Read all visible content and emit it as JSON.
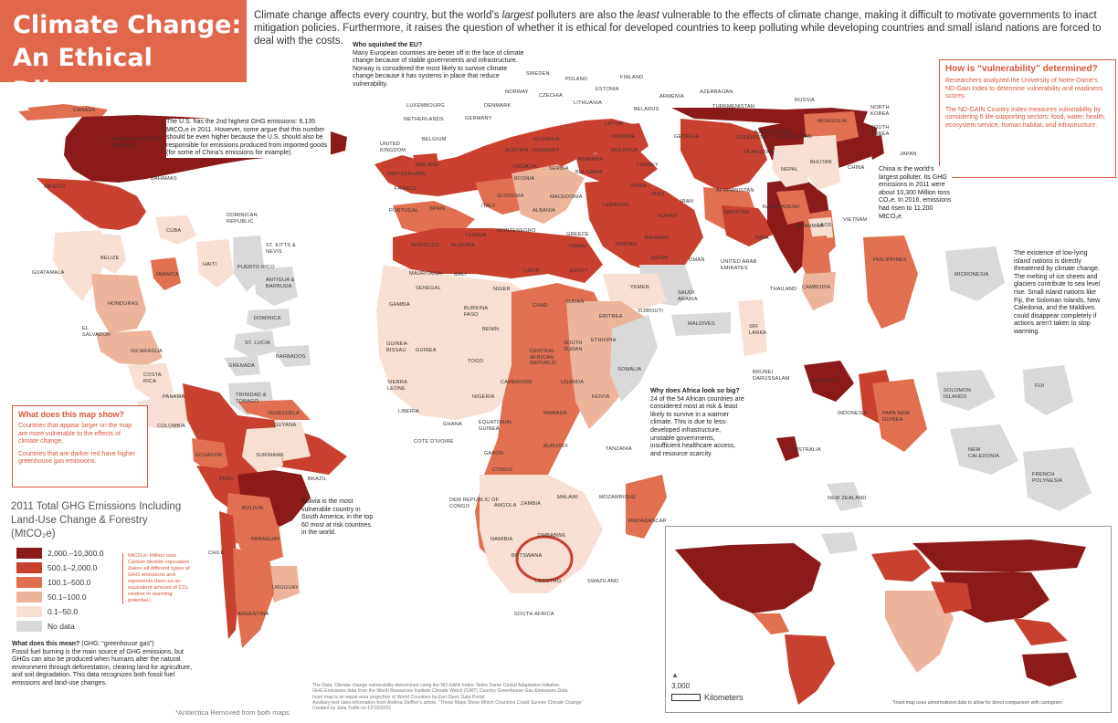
{
  "title": {
    "line1": "Climate Change:",
    "line2": "An Ethical Dilemma"
  },
  "intro": {
    "part1": "Climate change affects every country, but the world’s ",
    "em1": "largest",
    "part2": " polluters are also the ",
    "em2": "least",
    "part3": " vulnerable to the effects of climate change, making it difficult to motivate governments to inact mitigation policies. Furthermore, it raises the question of whether it is ethical for developed countries to keep polluting while developing countries and small island nations are forced to deal with the costs."
  },
  "notes": {
    "eu_title": "Who squished the EU?",
    "eu_text": "Many European countries are better off in the face of climate change because of stable governments and infrastructure. Norway is considered the most likely to survive climate change because it has systems in place that reduce vulnerability.",
    "us_text": "The U.S. has the 2nd highest GHG emissions: 6,135 MtCO₂e in 2011. However, some argue that this number should be even higher because the U.S. should also be responsible for emissions produced from imported goods (for some of China’s emissions for example).",
    "china_text": "China is the world’s largest polluter. Its GHG emissions in 2011 were about 10,300 Million tons CO₂e. In 2016, emissions had risen to 11,200 MtCO₂e.",
    "island_text": "The existence of low-lying island nations is directly threatened by climate change. The melting of ice sheets and glaciers contribute to sea level rise. Small island nations like Fiji, the Soloman Islands, New Caledonia, and the Maldives could disappear completely if actions aren’t taken to stop warming.",
    "africa_title": "Why does Africa look so big?",
    "africa_text": "24 of the 54 African countries are considered most at risk & least likely to survive in a warmer climate. This is due to less-developed infrastructure, unstable governments, insufficient healthcare access, and resource scarcity.",
    "bolivia_text": "Bolivia is the most vulnerable country in South America, in the top 60 most at risk countries in the world."
  },
  "vulnerability_box": {
    "title": "How is “vulnerability” determined?",
    "p1": "Researchers analyzed the University of Notre-Dame’s ND-Gain Index to determine vulnerability and readiness scores.",
    "p2": "The ND-GAIN Country Index measures vulnerability by considering 6 life-supporting sectors: food, water, health, ecosystem service, human habitat, and infrastructure."
  },
  "map_box": {
    "title": "What does this map show?",
    "p1": "Countries that appear larger on the map are more vulnerable to the effects of climate change.",
    "p2": "Countries that are darker red have higher greenhouse gas emissions."
  },
  "legend": {
    "title": "2011 Total GHG Emissions Including Land-Use Change & Forestry (MtCO₂e)",
    "items": [
      {
        "label": "2,000.–10,300.0",
        "color": "#8b1a1a"
      },
      {
        "label": "500.1–2,000.0",
        "color": "#c8412e"
      },
      {
        "label": "100.1–500.0",
        "color": "#e0704f"
      },
      {
        "label": "50.1–100.0",
        "color": "#eeb39b"
      },
      {
        "label": "0.1–50.0",
        "color": "#f7dfd3"
      },
      {
        "label": "No data",
        "color": "#d9d9d9"
      }
    ],
    "mtco2_note": "MtCO₂e: Million tons Carbon dioxide equivalent (takes all different types of GHG emissions and represents them as an equivalent amount of CO₂ relative to warming potential.)"
  },
  "meaning": {
    "title": "What does this mean?",
    "subtitle": "(GHG: “greenhouse gas”)",
    "text": "Fossil fuel burning is the main source of GHG emissions, but GHGs can also be produced when humans alter the natural environment through deforestation, clearing land for agriculture, and soil degradation. This data recognizes both fossil fuel emissions and land-use changes."
  },
  "footer": {
    "antarctica": "*Antarctica Removed from both maps",
    "sources": [
      "The Data: Climate change vulnerability determined using the ND-GAIN Index: Notre Dame Global Adaptation Initiative.",
      "GHG Emissions data from the World Resources Institute Climate Watch (CAIT) Country Greenhouse Gas Emissions Data.",
      "Inset map is an equal-area projection of World Countries by Esri Open Data Portal.",
      "Auxiliary text uses information from Andrea Steffen’s article, “These Maps Show Which Countries Could Survive Climate Change”",
      "Created by Julia Tuttle on 12/10/2021"
    ],
    "scale_value": "3,000",
    "scale_unit": "Kilometers",
    "inset_note": "*Inset map uses unnormalized data to allow for direct comparison with cartogram"
  },
  "countries": [
    "CANADA",
    "UNITED STATES OF AMERICA",
    "MEXICO",
    "BAHAMAS",
    "CUBA",
    "DOMINICAN REPUBLIC",
    "HAITI",
    "PUERTO RICO",
    "JAMAICA",
    "BELIZE",
    "GUATAMALA",
    "HONDURAS",
    "EL SALVADOR",
    "NICARAGUA",
    "COSTA RICA",
    "PANAMA",
    "ST. KITTS & NEVIS",
    "ANTIGUA & BARBUDA",
    "DOMINICA",
    "ST. LUCIA",
    "BARBADOS",
    "GRENADA",
    "TRINIDAD & TOBAGO",
    "COLOMBIA",
    "VENEZUELA",
    "GUYANA",
    "SURINAME",
    "ECUADOR",
    "PERU",
    "BRAZIL",
    "BOLIVIA",
    "PARAGUAY",
    "CHILE",
    "URUGUAY",
    "ARGENTINA",
    "SWEDEN",
    "POLAND",
    "FINLAND",
    "NORWAY",
    "CZECHIA",
    "ESTONIA",
    "LITHUANIA",
    "LUXEMBOURG",
    "DENMARK",
    "NETHERLANDS",
    "GERMANY",
    "BELARUS",
    "UNITED KINGDOM",
    "BELGIUM",
    "IRELAND",
    "SWITZERLAND",
    "FRANCE",
    "PORTUGAL",
    "SPAIN",
    "ITALY",
    "MONTENEGRO",
    "GREECE",
    "AUSTRIA",
    "SLOVAKIA",
    "HUNGARY",
    "CROATIA",
    "BOSNIA",
    "SERBIA",
    "ROMANIA",
    "BULGARIA",
    "SLOVENIA",
    "ALBANIA",
    "MACEDONIA",
    "LATVIA",
    "UKRAINE",
    "MOLDOVA",
    "TURKEY",
    "GEORGIA",
    "ARMENIA",
    "AZERBAIJAN",
    "RUSSIA",
    "TURKMENISTAN",
    "KAZAKHSTAN",
    "UZBEKISTAN",
    "KYRGYZSTAN",
    "TAJIKISTAN",
    "AFGHANISTAN",
    "PAKISTAN",
    "NEPAL",
    "BHUTAN",
    "INDIA",
    "BANGLADESH",
    "MYANMAR",
    "LAOS",
    "CHINA",
    "MONGOLIA",
    "NORTH KOREA",
    "SOUTH KOREA",
    "JAPAN",
    "VIETNAM",
    "THAILAND",
    "CAMBODIA",
    "PHILIPPINES",
    "SRI LANKA",
    "MALDIVES",
    "SYRIA",
    "IRAQ",
    "IRAN",
    "KUWAIT",
    "BAHRAIN",
    "QATAR",
    "OMAN",
    "LEBANON",
    "ISRAEL",
    "JORDAN",
    "UNITED ARAB EMIRATES",
    "SAUDI ARABIA",
    "YEMEN",
    "TUNISIA",
    "MOROCCO",
    "ALGERIA",
    "LIBYA",
    "EGYPT",
    "MAURITANIA",
    "MALI",
    "NIGER",
    "CHAD",
    "SUDAN",
    "SENEGAL",
    "GAMBIA",
    "BURKINA FASO",
    "GUINEA-BISSAU",
    "GUINEA",
    "SIERRA LEONE",
    "LIBERIA",
    "COTE D'IVOIRE",
    "GHANA",
    "TOGO",
    "BENIN",
    "NIGERIA",
    "CAMEROON",
    "CENTRAL AFRICAN REPUBLIC",
    "SOUTH SUDAN",
    "ERITREA",
    "DJIBOUTI",
    "ETHIOPIA",
    "SOMALIA",
    "UGANDA",
    "KENYA",
    "RWANDA",
    "BURUNDI",
    "TANZANIA",
    "EQUATORIAL GUINEA",
    "GABON",
    "CONGO",
    "DEM REPUBLIC OF CONGO",
    "ANGOLA",
    "ZAMBIA",
    "MALAWI",
    "MOZAMBIQUE",
    "ZIMBABWE",
    "NAMIBIA",
    "BOTSWANA",
    "MADAGASCAR",
    "LESOTHO",
    "SWAZILAND",
    "SOUTH AFRICA",
    "MICRONESIA",
    "BRUNEI DARUSSALAM",
    "MALAYSIA",
    "INDONESIA",
    "PAPA NEW GUINEA",
    "AUSTRALIA",
    "NEW ZEALAND",
    "SOLOMON ISLANDS",
    "FIJI",
    "NEW CALEDONIA",
    "FRENCH POLYNESIA"
  ]
}
